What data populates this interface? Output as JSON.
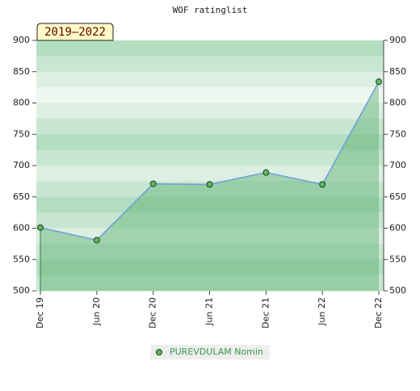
{
  "chart_data": {
    "type": "line",
    "title": "WOF ratinglist",
    "annotation": "2019–2022",
    "categories": [
      "Dec 19",
      "Jun 20",
      "Dec 20",
      "Jun 21",
      "Dec 21",
      "Jun 22",
      "Dec 22"
    ],
    "series": [
      {
        "name": "PUREVDULAM Nomin",
        "color": "#6a9fd8",
        "values": [
          601,
          581,
          671,
          670,
          689,
          670,
          834
        ]
      }
    ],
    "ylim": [
      500,
      900
    ],
    "yticks": [
      500,
      550,
      600,
      650,
      700,
      750,
      800,
      850,
      900
    ],
    "y2lim": [
      500,
      900
    ],
    "y2ticks": [
      500,
      550,
      600,
      650,
      700,
      750,
      800,
      850,
      900
    ],
    "legend": "bottom"
  }
}
